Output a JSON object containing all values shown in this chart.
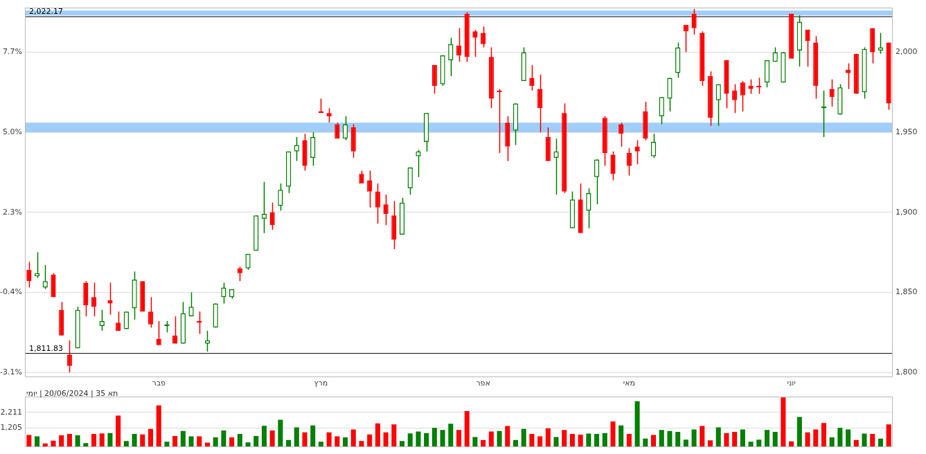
{
  "chart_data": [
    {
      "type": "candlestick",
      "categories": [
        null,
        null,
        null,
        null,
        null,
        null,
        null,
        null,
        null,
        null,
        null,
        null,
        null,
        null,
        null,
        null,
        "פבר",
        null,
        null,
        null,
        null,
        null,
        null,
        null,
        null,
        null,
        null,
        null,
        null,
        null,
        null,
        null,
        null,
        null,
        null,
        null,
        "מרץ",
        null,
        null,
        null,
        null,
        null,
        null,
        null,
        null,
        null,
        null,
        null,
        null,
        null,
        null,
        null,
        null,
        null,
        null,
        null,
        "אפר",
        null,
        null,
        null,
        null,
        null,
        null,
        null,
        null,
        null,
        null,
        null,
        null,
        null,
        null,
        null,
        null,
        null,
        "מאי",
        null,
        null,
        null,
        null,
        null,
        null,
        null,
        null,
        null,
        null,
        null,
        null,
        null,
        null,
        null,
        null,
        null,
        null,
        null,
        "יוני",
        null,
        null,
        null,
        null,
        null,
        null,
        null,
        null,
        null,
        null,
        null,
        null
      ],
      "ohlc": [
        [
          1864,
          1869,
          1853,
          1857
        ],
        [
          1860,
          1875,
          1859,
          1862
        ],
        [
          1853,
          1867,
          1852,
          1857
        ],
        [
          1861,
          1862,
          1847,
          1847
        ],
        [
          1839,
          1844,
          1823,
          1823
        ],
        [
          1811,
          1820,
          1800,
          1804
        ],
        [
          1815,
          1841,
          1815,
          1839
        ],
        [
          1856,
          1857,
          1835,
          1842
        ],
        [
          1847,
          1856,
          1835,
          1841
        ],
        [
          1829,
          1839,
          1826,
          1832
        ],
        [
          1845,
          1856,
          1836,
          1843
        ],
        [
          1831,
          1838,
          1826,
          1826
        ],
        [
          1827,
          1838,
          1827,
          1838
        ],
        [
          1840,
          1863,
          1833,
          1858
        ],
        [
          1857,
          1857,
          1838,
          1838
        ],
        [
          1838,
          1847,
          1828,
          1830
        ],
        [
          1821,
          1832,
          1817,
          1817
        ],
        [
          1829,
          1832,
          1825,
          1830
        ],
        [
          1823,
          1835,
          1818,
          1818
        ],
        [
          1818,
          1844,
          1818,
          1837
        ],
        [
          1835,
          1850,
          1835,
          1841
        ],
        [
          1832,
          1838,
          1824,
          1831
        ],
        [
          1818,
          1826,
          1813,
          1820
        ],
        [
          1828,
          1843,
          1828,
          1843
        ],
        [
          1847,
          1856,
          1843,
          1853
        ],
        [
          1847,
          1852,
          1846,
          1852
        ],
        [
          1865,
          1866,
          1857,
          1862
        ],
        [
          1865,
          1874,
          1864,
          1874
        ],
        [
          1876,
          1898,
          1876,
          1898
        ],
        [
          1896,
          1919,
          1887,
          1899
        ],
        [
          1900,
          1906,
          1889,
          1892
        ],
        [
          1904,
          1918,
          1901,
          1914
        ],
        [
          1916,
          1938,
          1912,
          1938
        ],
        [
          1938,
          1947,
          1932,
          1942
        ],
        [
          1945,
          1949,
          1926,
          1929
        ],
        [
          1934,
          1950,
          1929,
          1947
        ],
        [
          1963,
          1971,
          1962,
          1962
        ],
        [
          1962,
          1965,
          1956,
          1960
        ],
        [
          1955,
          1956,
          1946,
          1946
        ],
        [
          1946,
          1960,
          1945,
          1955
        ],
        [
          1953,
          1955,
          1934,
          1938
        ],
        [
          1924,
          1926,
          1918,
          1918
        ],
        [
          1920,
          1926,
          1903,
          1913
        ],
        [
          1913,
          1918,
          1893,
          1903
        ],
        [
          1905,
          1911,
          1892,
          1899
        ],
        [
          1898,
          1907,
          1877,
          1883
        ],
        [
          1886,
          1909,
          1886,
          1906
        ],
        [
          1915,
          1928,
          1911,
          1928
        ],
        [
          1935,
          1939,
          1922,
          1938
        ],
        [
          1944,
          1962,
          1938,
          1962
        ],
        [
          1992,
          1992,
          1974,
          1979
        ],
        [
          1980,
          1998,
          1979,
          1998
        ],
        [
          1995,
          2009,
          1985,
          2005
        ],
        [
          2004,
          2015,
          1994,
          1998
        ],
        [
          2024,
          2025,
          1994,
          1997
        ],
        [
          2013,
          2014,
          1997,
          2009
        ],
        [
          2012,
          2016,
          2003,
          2005
        ],
        [
          1997,
          2003,
          1965,
          1971
        ],
        [
          1976,
          1977,
          1937,
          1975
        ],
        [
          1956,
          1960,
          1932,
          1941
        ],
        [
          1951,
          1968,
          1942,
          1968
        ],
        [
          1982,
          2003,
          1982,
          2000
        ],
        [
          1984,
          1992,
          1976,
          1979
        ],
        [
          1977,
          1986,
          1950,
          1965
        ],
        [
          1947,
          1953,
          1932,
          1932
        ],
        [
          1934,
          1946,
          1911,
          1938
        ],
        [
          1962,
          1968,
          1912,
          1913
        ],
        [
          1890,
          1913,
          1890,
          1908
        ],
        [
          1908,
          1918,
          1887,
          1887
        ],
        [
          1901,
          1915,
          1890,
          1912
        ],
        [
          1922,
          1933,
          1905,
          1933
        ],
        [
          1959,
          1960,
          1929,
          1937
        ],
        [
          1936,
          1938,
          1920,
          1924
        ],
        [
          1955,
          1956,
          1941,
          1949
        ],
        [
          1937,
          1940,
          1923,
          1929
        ],
        [
          1941,
          1945,
          1930,
          1938
        ],
        [
          1963,
          1969,
          1945,
          1946
        ],
        [
          1935,
          1949,
          1934,
          1944
        ],
        [
          1960,
          1972,
          1955,
          1972
        ],
        [
          1971,
          1984,
          1963,
          1984
        ],
        [
          1987,
          2006,
          1984,
          2003
        ],
        [
          2017,
          2017,
          2000,
          2013
        ],
        [
          2024,
          2027,
          2011,
          2015
        ],
        [
          2012,
          2013,
          1979,
          1982
        ],
        [
          1985,
          1988,
          1954,
          1959
        ],
        [
          1970,
          1980,
          1954,
          1980
        ],
        [
          1995,
          1995,
          1965,
          1974
        ],
        [
          1976,
          1980,
          1962,
          1970
        ],
        [
          1981,
          1982,
          1963,
          1973
        ],
        [
          1979,
          1983,
          1974,
          1977
        ],
        [
          1979,
          1984,
          1974,
          1978
        ],
        [
          1981,
          1995,
          1978,
          1995
        ],
        [
          1994,
          2003,
          1994,
          2000
        ],
        [
          1981,
          2000,
          1981,
          2000
        ],
        [
          2024,
          2024,
          1996,
          1996
        ],
        [
          2001,
          2023,
          1991,
          2019
        ],
        [
          2014,
          2014,
          1991,
          2007
        ],
        [
          2006,
          2010,
          1971,
          1979
        ],
        [
          1965,
          1976,
          1947,
          1966
        ],
        [
          1977,
          1983,
          1966,
          1972
        ],
        [
          1961,
          1980,
          1961,
          1978
        ],
        [
          1989,
          1993,
          1977,
          1987
        ],
        [
          1999,
          1999,
          1974,
          1974
        ],
        [
          1975,
          2003,
          1971,
          2002
        ],
        [
          2015,
          2015,
          1993,
          2000
        ],
        [
          2001,
          2012,
          1999,
          2003
        ],
        [
          2006,
          2006,
          1964,
          1968
        ]
      ],
      "colors": [
        "#ff0000",
        "#008000",
        "#008000",
        "#ff0000",
        "#ff0000",
        "#ff0000",
        "#008000",
        "#ff0000",
        "#ff0000",
        "#008000",
        "#ff0000",
        "#ff0000",
        "#008000",
        "#008000",
        "#ff0000",
        "#ff0000",
        "#ff0000",
        "#008000",
        "#ff0000",
        "#008000",
        "#008000",
        "#ff0000",
        "#008000",
        "#008000",
        "#008000",
        "#008000",
        "#ff0000",
        "#008000",
        "#008000",
        "#008000",
        "#ff0000",
        "#008000",
        "#008000",
        "#008000",
        "#ff0000",
        "#008000",
        "#ff0000",
        "#ff0000",
        "#ff0000",
        "#008000",
        "#ff0000",
        "#ff0000",
        "#ff0000",
        "#ff0000",
        "#ff0000",
        "#ff0000",
        "#008000",
        "#008000",
        "#008000",
        "#008000",
        "#ff0000",
        "#008000",
        "#008000",
        "#ff0000",
        "#ff0000",
        "#ff0000",
        "#ff0000",
        "#ff0000",
        "#ff0000",
        "#ff0000",
        "#008000",
        "#008000",
        "#ff0000",
        "#ff0000",
        "#ff0000",
        "#008000",
        "#ff0000",
        "#008000",
        "#ff0000",
        "#008000",
        "#008000",
        "#ff0000",
        "#ff0000",
        "#ff0000",
        "#ff0000",
        "#ff0000",
        "#ff0000",
        "#008000",
        "#008000",
        "#008000",
        "#008000",
        "#ff0000",
        "#ff0000",
        "#ff0000",
        "#ff0000",
        "#008000",
        "#ff0000",
        "#ff0000",
        "#ff0000",
        "#ff0000",
        "#ff0000",
        "#008000",
        "#008000",
        "#008000",
        "#ff0000",
        "#008000",
        "#ff0000",
        "#ff0000",
        "#008000",
        "#ff0000",
        "#008000",
        "#ff0000",
        "#ff0000",
        "#008000",
        "#ff0000",
        "#008000",
        "#ff0000"
      ],
      "ylim": [
        1797,
        2028
      ],
      "yticks": [
        {
          "value": 1800,
          "label": "1,800"
        },
        {
          "value": 1850,
          "label": "1,850"
        },
        {
          "value": 1900,
          "label": "1,900"
        },
        {
          "value": 1950,
          "label": "1,950"
        },
        {
          "value": 2000,
          "label": "2,000"
        }
      ],
      "y2lim": [
        -3.26,
        9.21
      ],
      "y2ticks": [
        {
          "value": -3.1,
          "label": "-3.1%"
        },
        {
          "value": -0.4,
          "label": "-0.4%"
        },
        {
          "value": 2.3,
          "label": "2.3%"
        },
        {
          "value": 5.0,
          "label": "5.0%"
        },
        {
          "value": 7.7,
          "label": "7.7%"
        }
      ],
      "ref_lines": [
        {
          "axis": "y",
          "value": 2022.17,
          "label": "2,022.17",
          "color": "#000000"
        },
        {
          "axis": "y",
          "value": 1811.83,
          "label": "1,811.83",
          "color": "#000000"
        }
      ],
      "bands": [
        {
          "axis": "y",
          "from": 2023,
          "to": 2026,
          "label": null,
          "color": "#90c4f8"
        },
        {
          "axis": "y",
          "from": 1950,
          "to": 1956,
          "label": null,
          "color": "#90c4f8"
        }
      ],
      "grid": "y",
      "legend": false
    },
    {
      "type": "bar",
      "title": "תא 35 | 20/06/2024 | יומי",
      "categories": [
        null,
        null,
        null,
        null,
        null,
        null,
        null,
        null,
        null,
        null,
        null,
        null,
        null,
        null,
        null,
        null,
        null,
        null,
        null,
        null,
        null,
        null,
        null,
        null,
        null,
        null,
        null,
        null,
        null,
        null,
        null,
        null,
        null,
        null,
        null,
        null,
        null,
        null,
        null,
        null,
        null,
        null,
        null,
        null,
        null,
        null,
        null,
        null,
        null,
        null,
        null,
        null,
        null,
        null,
        null,
        null,
        null,
        null,
        null,
        null,
        null,
        null,
        null,
        null,
        null,
        null,
        null,
        null,
        null,
        null,
        null,
        null,
        null,
        null,
        null,
        null,
        null,
        null,
        null,
        null,
        null,
        null,
        null,
        null,
        null,
        null,
        null,
        null,
        null,
        null,
        null,
        null,
        null,
        null,
        null,
        null,
        null,
        null,
        null,
        null,
        null,
        null,
        null,
        null,
        null,
        null,
        null
      ],
      "values": [
        750,
        660,
        210,
        390,
        730,
        820,
        730,
        230,
        820,
        860,
        880,
        2010,
        360,
        820,
        790,
        1140,
        2660,
        320,
        690,
        1010,
        660,
        660,
        260,
        600,
        1050,
        600,
        820,
        270,
        690,
        1350,
        1050,
        1740,
        430,
        1240,
        920,
        1370,
        320,
        920,
        660,
        600,
        1110,
        360,
        790,
        1500,
        920,
        1440,
        360,
        860,
        980,
        880,
        1210,
        1080,
        1480,
        1080,
        2300,
        620,
        430,
        980,
        1010,
        1340,
        430,
        1140,
        820,
        660,
        1180,
        620,
        1080,
        820,
        780,
        840,
        820,
        880,
        1630,
        1370,
        820,
        2930,
        520,
        750,
        1080,
        1010,
        950,
        450,
        1110,
        1340,
        410,
        1240,
        880,
        950,
        1110,
        320,
        450,
        1080,
        950,
        3180,
        340,
        1920,
        920,
        1110,
        1530,
        600,
        1210,
        1110,
        430,
        840,
        820,
        520,
        1440
      ],
      "colors": [
        "#ff0000",
        "#008000",
        "#ff0000",
        "#ff0000",
        "#ff0000",
        "#ff0000",
        "#008000",
        "#008000",
        "#ff0000",
        "#ff0000",
        "#008000",
        "#ff0000",
        "#008000",
        "#008000",
        "#ff0000",
        "#ff0000",
        "#ff0000",
        "#008000",
        "#ff0000",
        "#008000",
        "#008000",
        "#ff0000",
        "#ff0000",
        "#008000",
        "#008000",
        "#ff0000",
        "#008000",
        "#008000",
        "#008000",
        "#008000",
        "#ff0000",
        "#008000",
        "#008000",
        "#008000",
        "#ff0000",
        "#008000",
        "#008000",
        "#ff0000",
        "#ff0000",
        "#008000",
        "#ff0000",
        "#ff0000",
        "#ff0000",
        "#ff0000",
        "#ff0000",
        "#ff0000",
        "#008000",
        "#008000",
        "#008000",
        "#008000",
        "#008000",
        "#008000",
        "#008000",
        "#ff0000",
        "#ff0000",
        "#008000",
        "#ff0000",
        "#ff0000",
        "#008000",
        "#ff0000",
        "#008000",
        "#008000",
        "#ff0000",
        "#ff0000",
        "#ff0000",
        "#008000",
        "#ff0000",
        "#ff0000",
        "#ff0000",
        "#008000",
        "#008000",
        "#008000",
        "#ff0000",
        "#008000",
        "#ff0000",
        "#008000",
        "#008000",
        "#ff0000",
        "#008000",
        "#008000",
        "#008000",
        "#008000",
        "#008000",
        "#ff0000",
        "#ff0000",
        "#008000",
        "#ff0000",
        "#ff0000",
        "#008000",
        "#008000",
        "#008000",
        "#008000",
        "#008000",
        "#ff0000",
        "#ff0000",
        "#008000",
        "#ff0000",
        "#ff0000",
        "#ff0000",
        "#008000",
        "#008000",
        "#008000",
        "#ff0000",
        "#008000",
        "#ff0000",
        "#008000",
        "#ff0000"
      ],
      "ylim": [
        0,
        3250
      ],
      "yticks": [
        {
          "value": 1205,
          "label": "1,205"
        },
        {
          "value": 2211,
          "label": "2,211"
        }
      ],
      "grid": "y",
      "tick_labels": "y",
      "legend": false
    }
  ]
}
